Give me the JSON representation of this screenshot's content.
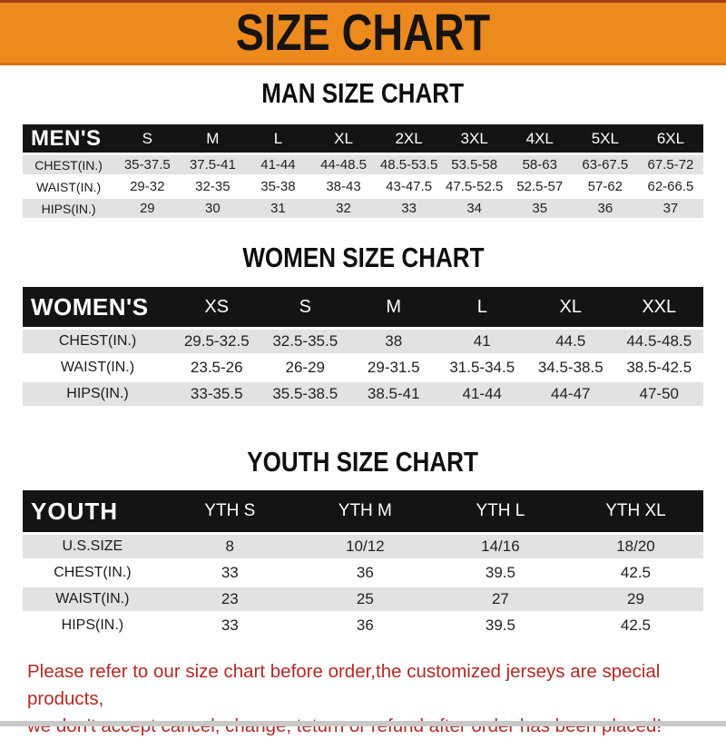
{
  "banner": {
    "title": "SIZE CHART",
    "bg_color": "#EC8A1E",
    "text_color": "#161310"
  },
  "sections": [
    {
      "heading": "MAN SIZE CHART",
      "label": "MEN'S",
      "columns": [
        "S",
        "M",
        "L",
        "XL",
        "2XL",
        "3XL",
        "4XL",
        "5XL",
        "6XL"
      ],
      "rows": [
        {
          "label": "CHEST(IN.)",
          "values": [
            "35-37.5",
            "37.5-41",
            "41-44",
            "44-48.5",
            "48.5-53.5",
            "53.5-58",
            "58-63",
            "63-67.5",
            "67.5-72"
          ]
        },
        {
          "label": "WAIST(IN.)",
          "values": [
            "29-32",
            "32-35",
            "35-38",
            "38-43",
            "43-47.5",
            "47.5-52.5",
            "52.5-57",
            "57-62",
            "62-66.5"
          ]
        },
        {
          "label": "HIPS(IN.)",
          "values": [
            "29",
            "30",
            "31",
            "32",
            "33",
            "34",
            "35",
            "36",
            "37"
          ]
        }
      ]
    },
    {
      "heading": "WOMEN SIZE CHART",
      "label": "WOMEN'S",
      "columns": [
        "XS",
        "S",
        "M",
        "L",
        "XL",
        "XXL"
      ],
      "rows": [
        {
          "label": "CHEST(IN.)",
          "values": [
            "29.5-32.5",
            "32.5-35.5",
            "38",
            "41",
            "44.5",
            "44.5-48.5"
          ]
        },
        {
          "label": "WAIST(IN.)",
          "values": [
            "23.5-26",
            "26-29",
            "29-31.5",
            "31.5-34.5",
            "34.5-38.5",
            "38.5-42.5"
          ]
        },
        {
          "label": "HIPS(IN.)",
          "values": [
            "33-35.5",
            "35.5-38.5",
            "38.5-41",
            "41-44",
            "44-47",
            "47-50"
          ]
        }
      ]
    },
    {
      "heading": "YOUTH SIZE CHART",
      "label": "YOUTH",
      "columns": [
        "YTH S",
        "YTH M",
        "YTH L",
        "YTH XL"
      ],
      "rows": [
        {
          "label": "U.S.SIZE",
          "values": [
            "8",
            "10/12",
            "14/16",
            "18/20"
          ]
        },
        {
          "label": "CHEST(IN.)",
          "values": [
            "33",
            "36",
            "39.5",
            "42.5"
          ]
        },
        {
          "label": "WAIST(IN.)",
          "values": [
            "23",
            "25",
            "27",
            "29"
          ]
        },
        {
          "label": "HIPS(IN.)",
          "values": [
            "33",
            "36",
            "39.5",
            "42.5"
          ]
        }
      ]
    }
  ],
  "footer_note": {
    "line1": "Please refer to our size chart before order,the customized jerseys are special products,",
    "line2": "we don't accept cancel, change, teturn or refund after order has been placed!",
    "color": "#B12A26"
  },
  "colors": {
    "banner_orange": "#EC8A1E",
    "banner_top_line": "#9C3D12",
    "banner_bottom_line": "#D4720E",
    "table_header_black": "#141414",
    "row_shade_gray": "#E2E2E2",
    "note_red": "#B12A26",
    "bottom_strip_gray": "#C9C9C9"
  }
}
